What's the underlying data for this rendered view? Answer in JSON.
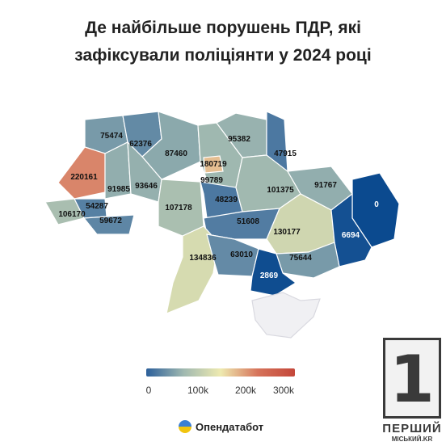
{
  "title": "Де найбільше порушень ПДР, які зафіксували поліціянти у 2024 році",
  "legend": {
    "ticks": [
      "0",
      "100k",
      "200k",
      "300k"
    ],
    "colors": [
      "#2c5f9a",
      "#9fb8b0",
      "#eeeab0",
      "#d6735a",
      "#c4473a"
    ]
  },
  "colors": {
    "accent_low": "#0b4a8f",
    "high": "#d9856a",
    "crimea": "#f0f0f3"
  },
  "regions": [
    {
      "name": "Volyn",
      "value": 75474
    },
    {
      "name": "Rivne",
      "value": 62376
    },
    {
      "name": "Zhytomyr",
      "value": 87460
    },
    {
      "name": "Kyiv city",
      "value": 180719
    },
    {
      "name": "Kyiv oblast",
      "value": 99789
    },
    {
      "name": "Chernihiv",
      "value": 95382
    },
    {
      "name": "Sumy",
      "value": 47915
    },
    {
      "name": "Lviv",
      "value": 220161
    },
    {
      "name": "Ternopil",
      "value": 91985
    },
    {
      "name": "Khmelnytskyi",
      "value": 93646
    },
    {
      "name": "Zakarpattia",
      "value": 106170
    },
    {
      "name": "Ivano-Frankivsk",
      "value": 54287
    },
    {
      "name": "Chernivtsi",
      "value": 59672
    },
    {
      "name": "Vinnytsia",
      "value": 107178
    },
    {
      "name": "Cherkasy",
      "value": 48239
    },
    {
      "name": "Poltava",
      "value": 101375
    },
    {
      "name": "Kharkiv",
      "value": 91767
    },
    {
      "name": "Luhansk",
      "value": 0
    },
    {
      "name": "Kirovohrad",
      "value": 51608
    },
    {
      "name": "Dnipropetrovsk",
      "value": 130177
    },
    {
      "name": "Donetsk",
      "value": 6694
    },
    {
      "name": "Odesa",
      "value": 134836
    },
    {
      "name": "Mykolaiv",
      "value": 63010
    },
    {
      "name": "Zaporizhzhia",
      "value": 75644
    },
    {
      "name": "Kherson",
      "value": 2869
    }
  ],
  "brand": {
    "name": "Опендатабот"
  },
  "watermark": {
    "digit": "1",
    "line1": "ПЕРШИЙ",
    "line2": "МІСЬКИЙ.KR"
  }
}
